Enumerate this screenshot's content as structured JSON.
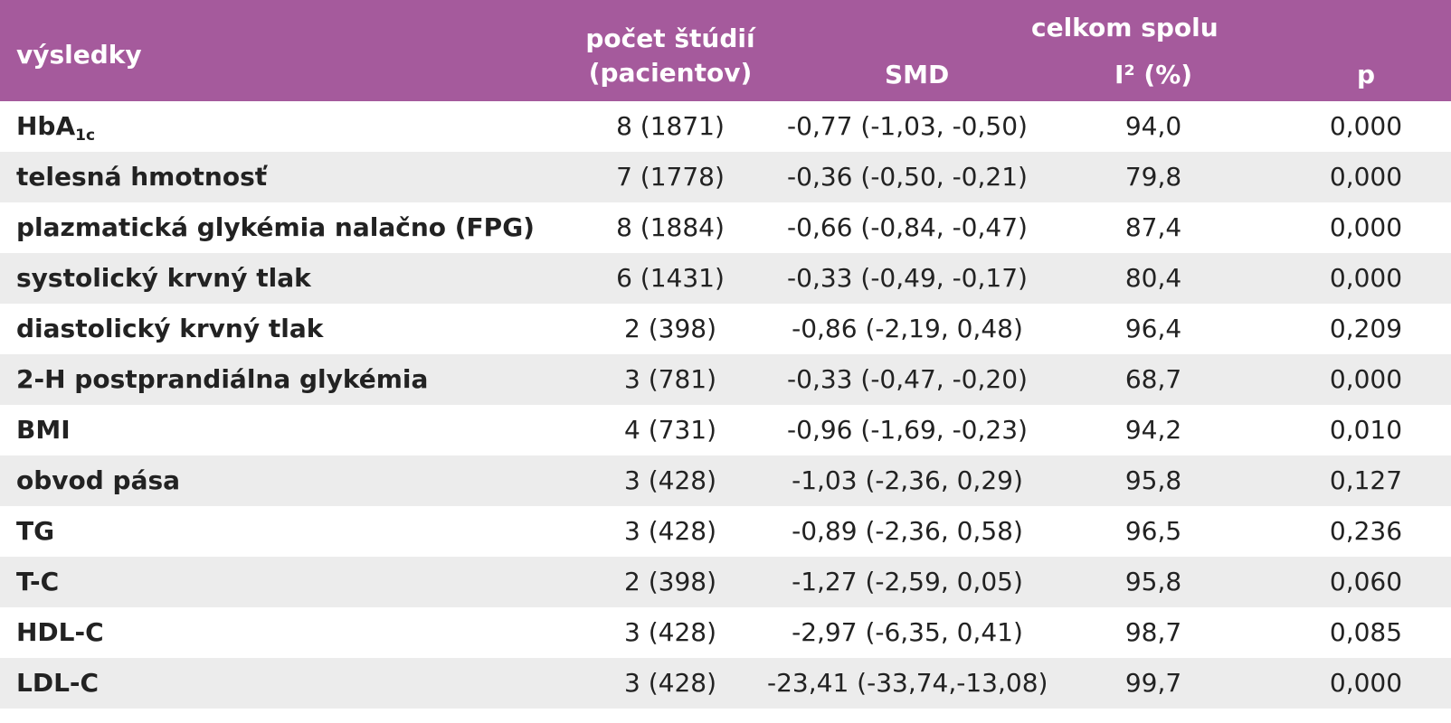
{
  "header": {
    "outcome": "výsledky",
    "count_line1": "počet štúdií",
    "count_line2": "(pacientov)",
    "total": "celkom spolu",
    "smd": "SMD",
    "i2": "I² (%)",
    "p": "p"
  },
  "rows": [
    {
      "outcome": "HbA",
      "outcome_sub": "1c",
      "count": "8 (1871)",
      "smd": "-0,77 (-1,03, -0,50)",
      "i2": "94,0",
      "p": "0,000"
    },
    {
      "outcome": "telesná hmotnosť",
      "count": "7 (1778)",
      "smd": "-0,36 (-0,50, -0,21)",
      "i2": "79,8",
      "p": "0,000"
    },
    {
      "outcome": "plazmatická glykémia nalačno  (FPG)",
      "count": "8 (1884)",
      "smd": "-0,66 (-0,84, -0,47)",
      "i2": "87,4",
      "p": "0,000"
    },
    {
      "outcome": "systolický krvný tlak",
      "count": "6 (1431)",
      "smd": "-0,33 (-0,49, -0,17)",
      "i2": "80,4",
      "p": "0,000"
    },
    {
      "outcome": "diastolický krvný tlak",
      "count": "2 (398)",
      "smd": "-0,86 (-2,19,  0,48)",
      "i2": "96,4",
      "p": "0,209"
    },
    {
      "outcome": "2-H postprandiálna glykémia",
      "count": "3 (781)",
      "smd": "-0,33 (-0,47, -0,20)",
      "i2": "68,7",
      "p": "0,000"
    },
    {
      "outcome": "BMI",
      "count": "4 (731)",
      "smd": "-0,96 (-1,69, -0,23)",
      "i2": "94,2",
      "p": "0,010"
    },
    {
      "outcome": "obvod pása",
      "count": "3 (428)",
      "smd": "-1,03 (-2,36,  0,29)",
      "i2": "95,8",
      "p": "0,127"
    },
    {
      "outcome": "TG",
      "count": "3 (428)",
      "smd": "-0,89 (-2,36,  0,58)",
      "i2": "96,5",
      "p": "0,236"
    },
    {
      "outcome": "T-C",
      "count": "2 (398)",
      "smd": "-1,27 (-2,59,  0,05)",
      "i2": "95,8",
      "p": "0,060"
    },
    {
      "outcome": "HDL-C",
      "count": "3 (428)",
      "smd": "-2,97 (-6,35,  0,41)",
      "i2": "98,7",
      "p": "0,085"
    },
    {
      "outcome": "LDL-C",
      "count": "3 (428)",
      "smd": "-23,41 (-33,74,-13,08)",
      "i2": "99,7",
      "p": "0,000"
    }
  ],
  "colors": {
    "header_bg": "#a55a9c",
    "header_text": "#ffffff",
    "row_shade": "#ececec",
    "body_text": "#222222"
  }
}
